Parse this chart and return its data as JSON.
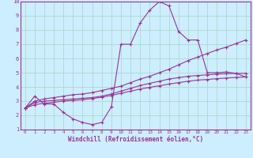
{
  "background_color": "#cceeff",
  "grid_color": "#aaddcc",
  "line_color": "#993399",
  "marker": "+",
  "xlabel": "Windchill (Refroidissement éolien,°C)",
  "xlim": [
    -0.5,
    23.5
  ],
  "ylim": [
    1,
    10
  ],
  "xticks": [
    0,
    1,
    2,
    3,
    4,
    5,
    6,
    7,
    8,
    9,
    10,
    11,
    12,
    13,
    14,
    15,
    16,
    17,
    18,
    19,
    20,
    21,
    22,
    23
  ],
  "yticks": [
    1,
    2,
    3,
    4,
    5,
    6,
    7,
    8,
    9,
    10
  ],
  "line1_x": [
    0,
    1,
    2,
    3,
    4,
    5,
    6,
    7,
    8,
    9,
    10,
    11,
    12,
    13,
    14,
    15,
    16,
    17,
    18,
    19,
    20,
    21,
    22,
    23
  ],
  "line1_y": [
    2.5,
    3.35,
    2.8,
    2.8,
    2.2,
    1.75,
    1.5,
    1.35,
    1.5,
    2.6,
    7.0,
    7.0,
    8.5,
    9.4,
    10.0,
    9.7,
    7.9,
    7.3,
    7.3,
    5.0,
    5.0,
    5.05,
    4.95,
    4.7
  ],
  "line2_x": [
    0,
    1,
    2,
    3,
    4,
    5,
    6,
    7,
    8,
    9,
    10,
    11,
    12,
    13,
    14,
    15,
    16,
    17,
    18,
    19,
    20,
    21,
    22,
    23
  ],
  "line2_y": [
    2.5,
    3.0,
    3.15,
    3.25,
    3.35,
    3.45,
    3.5,
    3.6,
    3.75,
    3.9,
    4.05,
    4.3,
    4.55,
    4.75,
    5.0,
    5.25,
    5.55,
    5.85,
    6.1,
    6.35,
    6.6,
    6.8,
    7.05,
    7.3
  ],
  "line3_x": [
    0,
    1,
    2,
    3,
    4,
    5,
    6,
    7,
    8,
    9,
    10,
    11,
    12,
    13,
    14,
    15,
    16,
    17,
    18,
    19,
    20,
    21,
    22,
    23
  ],
  "line3_y": [
    2.5,
    2.9,
    3.0,
    3.05,
    3.1,
    3.15,
    3.2,
    3.25,
    3.35,
    3.5,
    3.7,
    3.9,
    4.1,
    4.25,
    4.4,
    4.55,
    4.65,
    4.75,
    4.8,
    4.85,
    4.9,
    4.93,
    4.95,
    4.95
  ],
  "line4_x": [
    0,
    1,
    2,
    3,
    4,
    5,
    6,
    7,
    8,
    9,
    10,
    11,
    12,
    13,
    14,
    15,
    16,
    17,
    18,
    19,
    20,
    21,
    22,
    23
  ],
  "line4_y": [
    2.5,
    2.75,
    2.85,
    2.92,
    3.0,
    3.05,
    3.1,
    3.18,
    3.28,
    3.4,
    3.55,
    3.7,
    3.85,
    3.97,
    4.08,
    4.2,
    4.3,
    4.4,
    4.48,
    4.52,
    4.58,
    4.62,
    4.67,
    4.7
  ]
}
